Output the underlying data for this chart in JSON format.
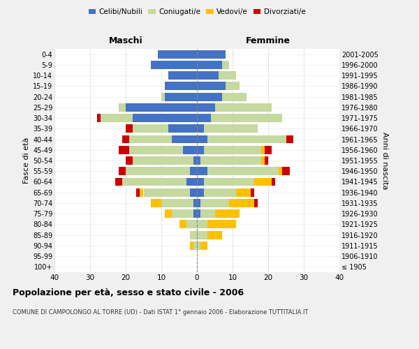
{
  "age_groups": [
    "100+",
    "95-99",
    "90-94",
    "85-89",
    "80-84",
    "75-79",
    "70-74",
    "65-69",
    "60-64",
    "55-59",
    "50-54",
    "45-49",
    "40-44",
    "35-39",
    "30-34",
    "25-29",
    "20-24",
    "15-19",
    "10-14",
    "5-9",
    "0-4"
  ],
  "birth_years": [
    "≤ 1905",
    "1906-1910",
    "1911-1915",
    "1916-1920",
    "1921-1925",
    "1926-1930",
    "1931-1935",
    "1936-1940",
    "1941-1945",
    "1946-1950",
    "1951-1955",
    "1956-1960",
    "1961-1965",
    "1966-1970",
    "1971-1975",
    "1976-1980",
    "1981-1985",
    "1986-1990",
    "1991-1995",
    "1996-2000",
    "2001-2005"
  ],
  "males": {
    "celibi": [
      0,
      0,
      0,
      0,
      0,
      1,
      1,
      2,
      3,
      2,
      1,
      4,
      7,
      8,
      18,
      20,
      9,
      9,
      8,
      13,
      11
    ],
    "coniugati": [
      0,
      0,
      1,
      2,
      3,
      6,
      9,
      13,
      18,
      18,
      17,
      15,
      12,
      10,
      9,
      2,
      1,
      0,
      0,
      0,
      0
    ],
    "vedovi": [
      0,
      0,
      1,
      0,
      2,
      2,
      3,
      1,
      0,
      0,
      0,
      0,
      0,
      0,
      0,
      0,
      0,
      0,
      0,
      0,
      0
    ],
    "divorziati": [
      0,
      0,
      0,
      0,
      0,
      0,
      0,
      1,
      2,
      2,
      2,
      3,
      2,
      2,
      1,
      0,
      0,
      0,
      0,
      0,
      0
    ]
  },
  "females": {
    "nubili": [
      0,
      0,
      0,
      0,
      0,
      1,
      1,
      2,
      2,
      3,
      1,
      2,
      3,
      2,
      4,
      5,
      7,
      8,
      6,
      7,
      8
    ],
    "coniugate": [
      0,
      0,
      1,
      3,
      3,
      4,
      8,
      9,
      14,
      20,
      17,
      16,
      22,
      15,
      20,
      16,
      7,
      4,
      5,
      2,
      0
    ],
    "vedove": [
      0,
      0,
      2,
      4,
      8,
      7,
      7,
      4,
      5,
      1,
      1,
      1,
      0,
      0,
      0,
      0,
      0,
      0,
      0,
      0,
      0
    ],
    "divorziate": [
      0,
      0,
      0,
      0,
      0,
      0,
      1,
      1,
      1,
      2,
      1,
      2,
      2,
      0,
      0,
      0,
      0,
      0,
      0,
      0,
      0
    ]
  },
  "colors": {
    "celibi": "#4472c4",
    "coniugati": "#c5d9a0",
    "vedovi": "#ffc000",
    "divorziati": "#cc0000"
  },
  "xlim": 40,
  "title": "Popolazione per età, sesso e stato civile - 2006",
  "subtitle": "COMUNE DI CAMPOLONGO AL TORRE (UD) - Dati ISTAT 1° gennaio 2006 - Elaborazione TUTTITALIA.IT",
  "ylabel_left": "Fasce di età",
  "ylabel_right": "Anni di nascita",
  "xlabel_left": "Maschi",
  "xlabel_right": "Femmine",
  "bg_color": "#f0f0f0",
  "plot_bg": "#ffffff"
}
